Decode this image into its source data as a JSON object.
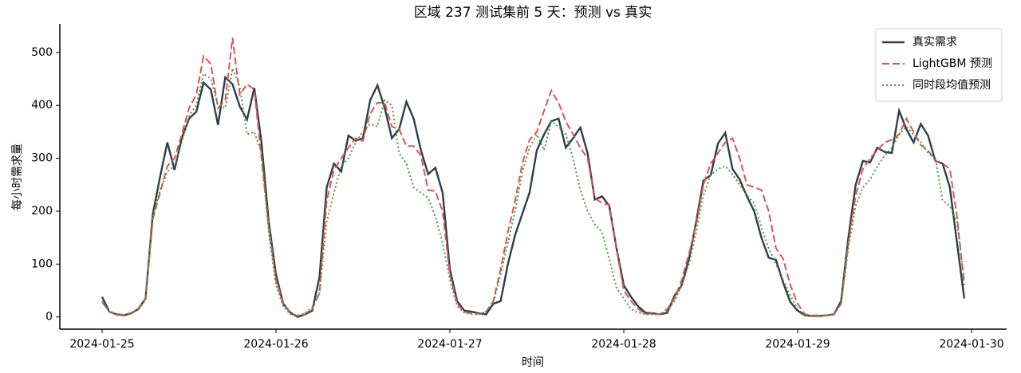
{
  "chart_data": {
    "type": "line",
    "title": "区域 237 测试集前 5 天：预测 vs 真实",
    "x_label": "时间",
    "y_label": "每小时需求量",
    "xticks": [
      "2024-01-25",
      "2024-01-26",
      "2024-01-27",
      "2024-01-28",
      "2024-01-29",
      "2024-01-30"
    ],
    "ylim": [
      -23,
      554
    ],
    "yticks": [
      0,
      100,
      200,
      300,
      400,
      500
    ],
    "legend": "upper right",
    "series": [
      {
        "name": "真实需求",
        "color": "#2c3e50",
        "style": "solid",
        "values": [
          38,
          10,
          5,
          3,
          7,
          15,
          35,
          195,
          265,
          330,
          278,
          338,
          375,
          388,
          443,
          430,
          363,
          453,
          440,
          398,
          373,
          433,
          330,
          180,
          80,
          25,
          8,
          0,
          5,
          12,
          75,
          245,
          290,
          275,
          343,
          333,
          338,
          410,
          438,
          395,
          338,
          355,
          407,
          375,
          315,
          270,
          282,
          235,
          90,
          30,
          12,
          10,
          7,
          5,
          25,
          30,
          100,
          155,
          195,
          235,
          315,
          345,
          370,
          375,
          320,
          338,
          358,
          310,
          222,
          228,
          210,
          130,
          60,
          38,
          20,
          8,
          7,
          5,
          8,
          40,
          60,
          110,
          180,
          258,
          268,
          328,
          348,
          280,
          260,
          228,
          200,
          150,
          112,
          108,
          65,
          28,
          12,
          3,
          2,
          2,
          3,
          5,
          30,
          150,
          250,
          295,
          292,
          320,
          312,
          310,
          390,
          355,
          330,
          365,
          343,
          295,
          290,
          245,
          140,
          35
        ]
      },
      {
        "name": "LightGBM 预测",
        "color": "#e05252",
        "style": "dashed",
        "values": [
          28,
          10,
          6,
          4,
          8,
          14,
          35,
          185,
          235,
          285,
          300,
          345,
          395,
          420,
          493,
          478,
          395,
          410,
          528,
          420,
          440,
          430,
          300,
          170,
          70,
          25,
          8,
          2,
          6,
          15,
          45,
          220,
          278,
          300,
          320,
          338,
          333,
          385,
          405,
          405,
          360,
          355,
          323,
          323,
          305,
          240,
          238,
          200,
          80,
          25,
          10,
          7,
          6,
          10,
          30,
          90,
          160,
          220,
          290,
          335,
          350,
          390,
          428,
          405,
          370,
          345,
          320,
          300,
          225,
          215,
          212,
          130,
          50,
          30,
          15,
          5,
          7,
          5,
          15,
          35,
          70,
          120,
          175,
          250,
          290,
          310,
          330,
          338,
          300,
          250,
          245,
          240,
          200,
          130,
          110,
          60,
          25,
          5,
          3,
          3,
          3,
          5,
          25,
          140,
          230,
          280,
          300,
          315,
          330,
          335,
          345,
          375,
          350,
          325,
          315,
          295,
          290,
          280,
          190,
          60
        ]
      },
      {
        "name": "同时段均值预测",
        "color": "#4a9a3a",
        "style": "dotted",
        "values": [
          30,
          10,
          5,
          3,
          7,
          14,
          32,
          190,
          240,
          275,
          285,
          330,
          380,
          400,
          460,
          450,
          400,
          395,
          470,
          435,
          345,
          350,
          310,
          160,
          60,
          20,
          5,
          3,
          7,
          18,
          45,
          180,
          235,
          285,
          300,
          330,
          350,
          365,
          360,
          410,
          400,
          310,
          290,
          245,
          235,
          225,
          190,
          140,
          70,
          20,
          8,
          5,
          5,
          10,
          28,
          80,
          140,
          200,
          275,
          320,
          345,
          315,
          370,
          360,
          345,
          300,
          240,
          200,
          175,
          160,
          110,
          55,
          35,
          15,
          8,
          5,
          5,
          5,
          12,
          30,
          60,
          100,
          160,
          230,
          268,
          280,
          285,
          270,
          250,
          230,
          215,
          170,
          130,
          100,
          70,
          40,
          15,
          3,
          2,
          2,
          3,
          5,
          25,
          130,
          210,
          245,
          260,
          285,
          305,
          320,
          345,
          360,
          345,
          330,
          310,
          300,
          220,
          210,
          180,
          70
        ]
      }
    ]
  }
}
